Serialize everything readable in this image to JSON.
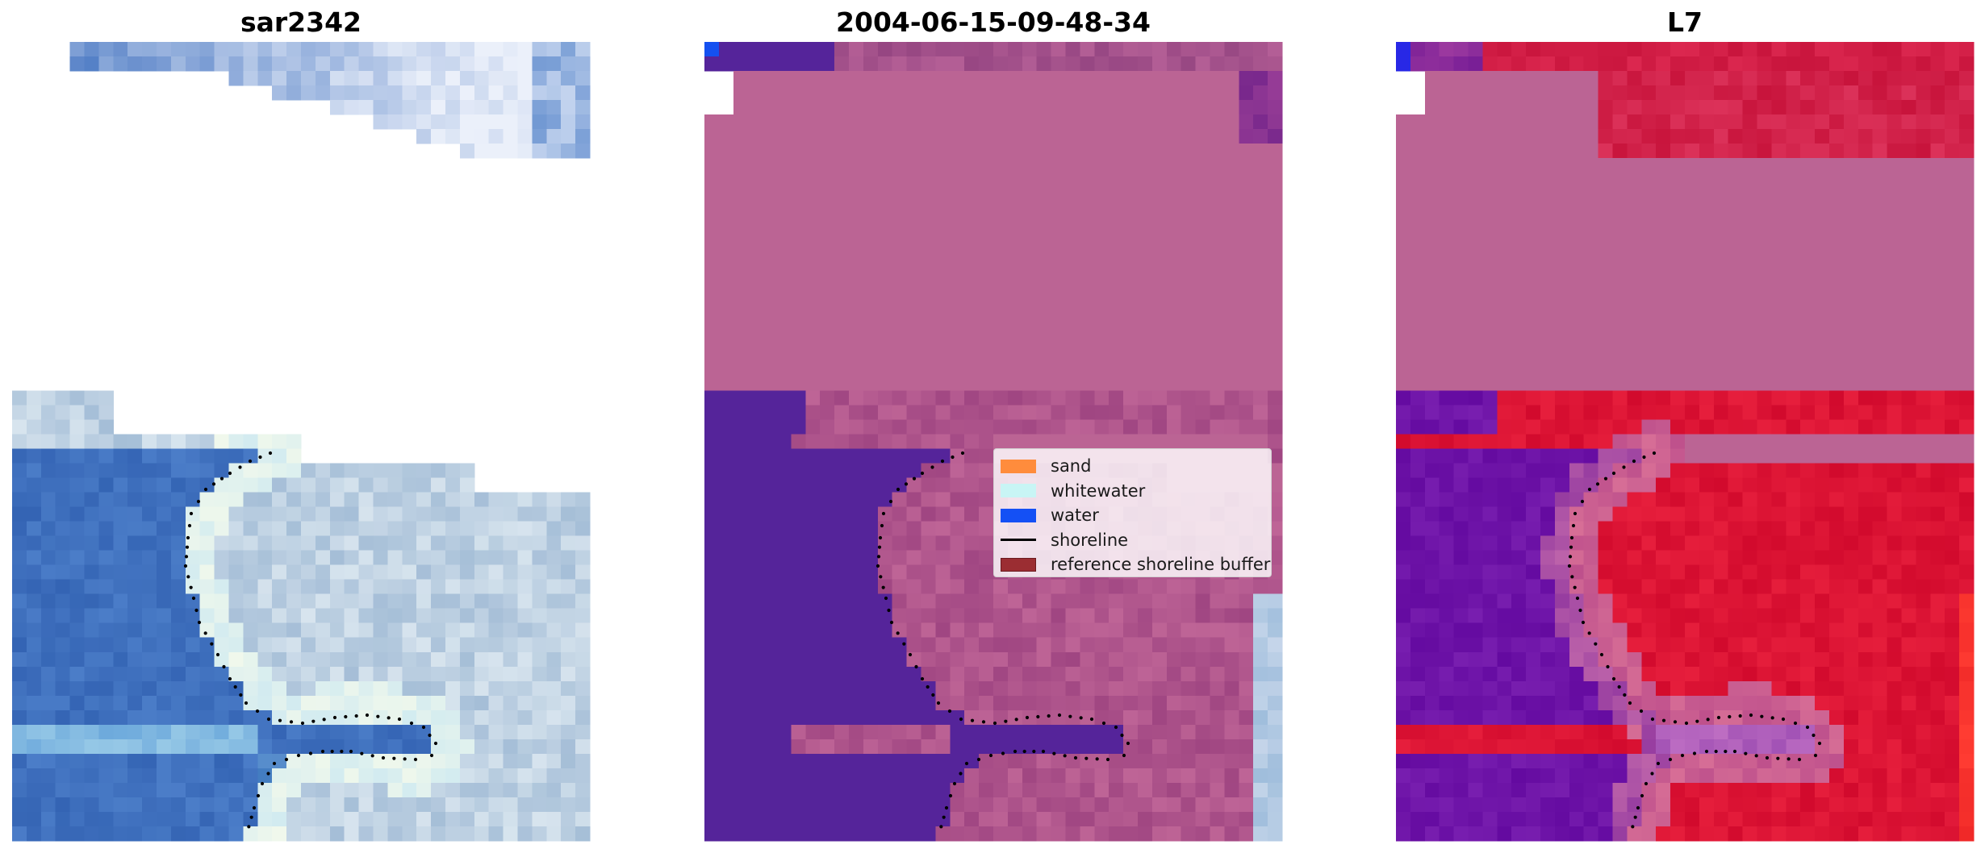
{
  "panels": [
    {
      "title": "sar2342",
      "style": "rgb"
    },
    {
      "title": "2004-06-15-09-48-34",
      "style": "classified"
    },
    {
      "title": "L7",
      "style": "falsecolor"
    }
  ],
  "legend": {
    "items": [
      {
        "label": "sand",
        "color": "#ff8c3c",
        "kind": "patch"
      },
      {
        "label": "whitewater",
        "color": "#c8f5f5",
        "kind": "patch"
      },
      {
        "label": "water",
        "color": "#1450f5",
        "kind": "patch"
      },
      {
        "label": "shoreline",
        "color": "#000000",
        "kind": "line"
      },
      {
        "label": "reference shoreline buffer",
        "color": "#9b2d32",
        "kind": "patch"
      }
    ]
  },
  "colors": {
    "classified_sand_overlay": "#bb6494",
    "classified_water": "#55249a",
    "false_color_land": "#bb6494",
    "false_color_water": "#6a0eaa",
    "false_color_sand": "#d4123a",
    "shoreline_dots": "#000000"
  }
}
